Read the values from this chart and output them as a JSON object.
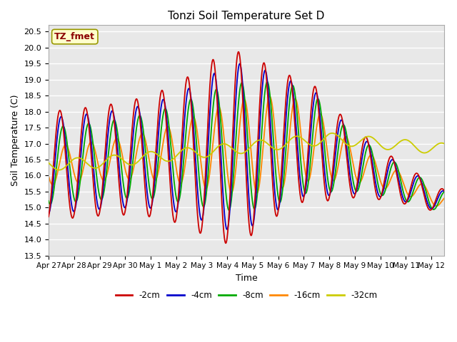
{
  "title": "Tonzi Soil Temperature Set D",
  "xlabel": "Time",
  "ylabel": "Soil Temperature (C)",
  "ylim": [
    13.5,
    20.7
  ],
  "legend_label": "TZ_fmet",
  "series_colors": {
    "-2cm": "#cc0000",
    "-4cm": "#0000cc",
    "-8cm": "#00aa00",
    "-16cm": "#ff8800",
    "-32cm": "#cccc00"
  },
  "xtick_labels": [
    "Apr 27",
    "Apr 28",
    "Apr 29",
    "Apr 30",
    "May 1",
    "May 2",
    "May 3",
    "May 4",
    "May 5",
    "May 6",
    "May 7",
    "May 8",
    "May 9",
    "May 10",
    "May 11",
    "May 12"
  ],
  "bg_color": "#e8e8e8",
  "grid_color": "white"
}
